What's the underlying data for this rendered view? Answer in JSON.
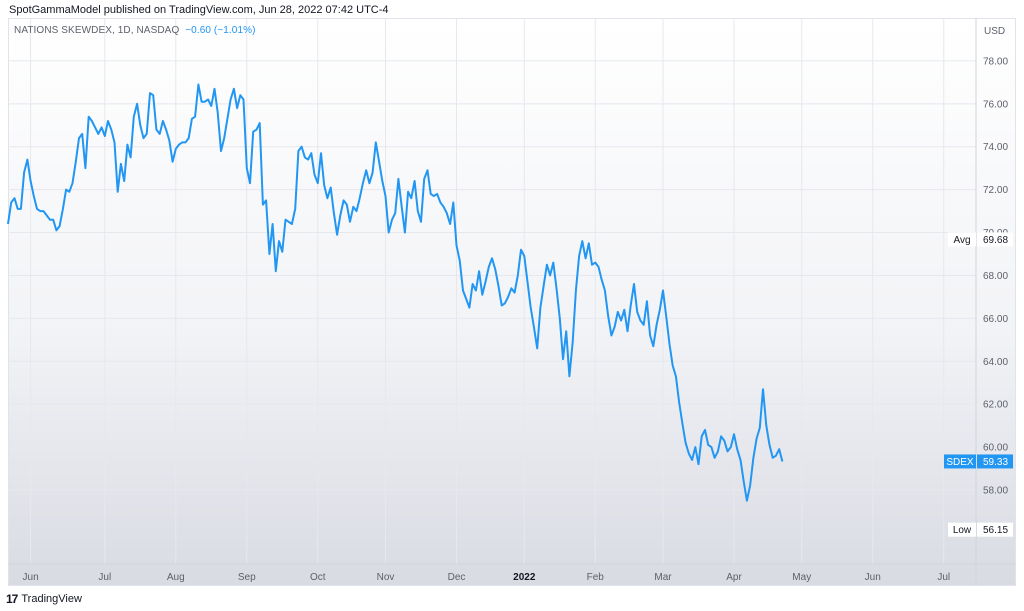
{
  "header": {
    "published": "SpotGammaModel published on TradingView.com, Jun 28, 2022 07:42 UTC-4",
    "symbol": "NATIONS SKEWDEX, 1D, NASDAQ",
    "change": "−0.60 (−1.01%)",
    "currency": "USD"
  },
  "footer": {
    "logo": "17",
    "brand": "TradingView"
  },
  "labels": {
    "avg_tag": "Avg",
    "avg_value": "69.68",
    "last_tag": "SDEX",
    "last_value": "59.33",
    "low_tag": "Low",
    "low_value": "56.15"
  },
  "colors": {
    "line": "#2196f3",
    "axis_text": "#5d606b",
    "grid": "#e6e8ee",
    "tag_bg": "#ffffff"
  },
  "chart_data": {
    "type": "line",
    "title": "NATIONS SKEWDEX, 1D, NASDAQ",
    "series": [
      {
        "name": "SDEX",
        "values": [
          70.4,
          71.4,
          71.6,
          71.1,
          71.1,
          72.8,
          73.4,
          72.4,
          71.7,
          71.1,
          71.0,
          71.0,
          70.8,
          70.6,
          70.6,
          70.1,
          70.3,
          71.1,
          72.0,
          71.9,
          72.3,
          73.3,
          74.4,
          74.6,
          73.0,
          75.4,
          75.2,
          74.9,
          74.6,
          74.9,
          74.5,
          75.2,
          74.8,
          74.2,
          71.9,
          73.2,
          72.4,
          74.1,
          73.5,
          75.4,
          76.0,
          75.0,
          74.4,
          74.6,
          76.5,
          76.4,
          74.8,
          74.6,
          75.2,
          74.8,
          74.3,
          73.3,
          73.9,
          74.1,
          74.2,
          74.2,
          74.4,
          75.3,
          75.4,
          76.9,
          76.1,
          76.1,
          76.2,
          75.9,
          76.7,
          75.6,
          73.8,
          74.4,
          75.3,
          76.2,
          76.7,
          75.8,
          76.4,
          76.2,
          73.0,
          72.3,
          74.7,
          74.8,
          75.1,
          71.3,
          71.5,
          69.0,
          70.4,
          68.2,
          69.6,
          69.1,
          70.6,
          70.5,
          70.4,
          71.1,
          73.8,
          74.0,
          73.5,
          73.4,
          73.7,
          72.7,
          72.3,
          73.7,
          72.2,
          71.6,
          72.1,
          70.9,
          69.9,
          70.8,
          71.5,
          71.3,
          70.5,
          71.2,
          71.0,
          71.6,
          72.3,
          72.9,
          72.3,
          72.8,
          74.2,
          73.3,
          72.4,
          71.7,
          70.0,
          70.6,
          70.9,
          72.5,
          71.2,
          70.0,
          71.9,
          71.6,
          72.4,
          71.0,
          70.5,
          72.5,
          72.9,
          71.8,
          71.7,
          71.8,
          71.4,
          71.2,
          70.9,
          70.4,
          71.4,
          69.4,
          68.7,
          67.3,
          66.9,
          66.5,
          67.6,
          67.3,
          68.2,
          67.1,
          67.7,
          68.4,
          68.8,
          68.3,
          67.5,
          66.6,
          66.7,
          67.0,
          67.4,
          67.2,
          68.0,
          69.2,
          68.9,
          67.7,
          66.5,
          65.6,
          64.6,
          66.5,
          67.5,
          68.5,
          68.0,
          68.6,
          67.4,
          66.0,
          64.1,
          65.4,
          63.3,
          64.9,
          67.3,
          68.9,
          69.6,
          68.8,
          69.5,
          68.5,
          68.6,
          68.4,
          67.8,
          67.3,
          66.1,
          65.2,
          65.6,
          66.3,
          65.9,
          66.4,
          65.4,
          66.6,
          67.6,
          66.3,
          65.9,
          65.7,
          66.8,
          65.2,
          64.7,
          65.7,
          66.4,
          67.3,
          66.1,
          64.8,
          63.8,
          63.3,
          62.1,
          61.1,
          60.2,
          59.7,
          59.4,
          60.0,
          59.2,
          60.5,
          60.8,
          60.1,
          60.0,
          59.5,
          59.8,
          60.5,
          60.3,
          59.8,
          60.0,
          60.6,
          59.9,
          59.4,
          58.4,
          57.5,
          58.2,
          59.5,
          60.4,
          60.9,
          62.7,
          61.0,
          60.1,
          59.5,
          59.6,
          59.9,
          59.33
        ]
      }
    ],
    "x_ticks": [
      {
        "label": "Jun",
        "index": 7
      },
      {
        "label": "Jul",
        "index": 30
      },
      {
        "label": "Aug",
        "index": 52
      },
      {
        "label": "Sep",
        "index": 74
      },
      {
        "label": "Oct",
        "index": 96
      },
      {
        "label": "Nov",
        "index": 117
      },
      {
        "label": "Dec",
        "index": 139
      },
      {
        "label": "2022",
        "index": 160,
        "bold": true
      },
      {
        "label": "Feb",
        "index": 182
      },
      {
        "label": "Mar",
        "index": 203
      },
      {
        "label": "Apr",
        "index": 225
      },
      {
        "label": "May",
        "index": 246
      },
      {
        "label": "Jun",
        "index": 268
      },
      {
        "label": "Jul",
        "index": 290
      }
    ],
    "y_ticks": [
      58,
      60,
      62,
      64,
      66,
      68,
      70,
      72,
      74,
      76,
      78
    ],
    "y_tick_labels": [
      "58.00",
      "60.00",
      "62.00",
      "64.00",
      "66.00",
      "68.00",
      "70.00",
      "72.00",
      "74.00",
      "76.00",
      "78.00"
    ],
    "ylim": [
      54.55,
      80.0
    ],
    "x_count": 300,
    "avg": 69.68,
    "low": 56.15,
    "last": 59.33,
    "grid": true,
    "axis_side": "right"
  }
}
